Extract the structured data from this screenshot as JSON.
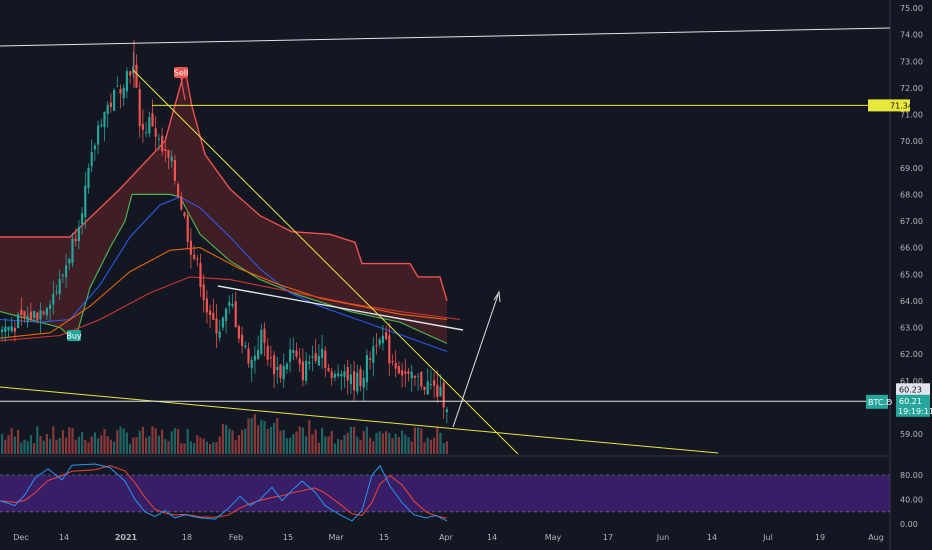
{
  "colors": {
    "background": "#131722",
    "up": "#26a69a",
    "down": "#ef5350",
    "grid": "#2a2e39",
    "axis_text": "#b2b5be",
    "cloud_upper": "#f05050",
    "cloud_lower": "#4caf50",
    "ma_blue": "#2962ff",
    "ma_orange": "#ff6d00",
    "ma_red": "#e53935",
    "trendline_yellow": "#e8e83a",
    "trendline_white": "#e0e3eb",
    "stoch_k": "#2196f3",
    "stoch_d": "#f44336",
    "stoch_band": "#4a1d8a",
    "last_price_tag": "#26a69a",
    "level_tag": "#e8e83a"
  },
  "chart_data": [
    {
      "type": "candlestick",
      "symbol": "BTC.D",
      "x_tick_labels": [
        "Dec",
        "14",
        "2021",
        "18",
        "Feb",
        "15",
        "Mar",
        "15",
        "Apr",
        "14",
        "May",
        "17",
        "Jun",
        "14",
        "Jul",
        "19",
        "Aug"
      ],
      "y_tick_labels": [
        "75.00",
        "74.00",
        "73.00",
        "72.00",
        "71.00",
        "70.00",
        "69.00",
        "68.00",
        "67.00",
        "66.00",
        "65.00",
        "64.00",
        "63.00",
        "62.00",
        "61.00",
        "59.00"
      ],
      "ylim": [
        58.55,
        75.35
      ],
      "horizontal_levels": [
        {
          "value": 71.34,
          "label": "71.34"
        },
        {
          "value": 60.23,
          "label": "60.23"
        }
      ],
      "last_price": {
        "symbol_label": "BTC.D",
        "value": "60.21",
        "countdown": "19:19:11"
      },
      "signals": [
        {
          "label": "Sell",
          "date": "2021-01-11",
          "price": 72.8
        },
        {
          "label": "Buy",
          "date": "2020-12-07",
          "price": 62.3
        }
      ],
      "series": [
        {
          "name": "price",
          "style": "candles"
        },
        {
          "style": "ma_blue"
        },
        {
          "style": "ma_orange"
        },
        {
          "style": "ma_red"
        },
        {
          "style": "cloud_upper"
        },
        {
          "style": "cloud_lower"
        }
      ],
      "volume": true
    },
    {
      "type": "line",
      "indicator": "stochastic",
      "y_tick_labels": [
        "80.00",
        "40.00",
        "0.00"
      ],
      "ylim": [
        -5,
        100
      ],
      "band": [
        20,
        80
      ],
      "series": [
        {
          "style": "stoch_k"
        },
        {
          "style": "stoch_d"
        }
      ]
    }
  ]
}
